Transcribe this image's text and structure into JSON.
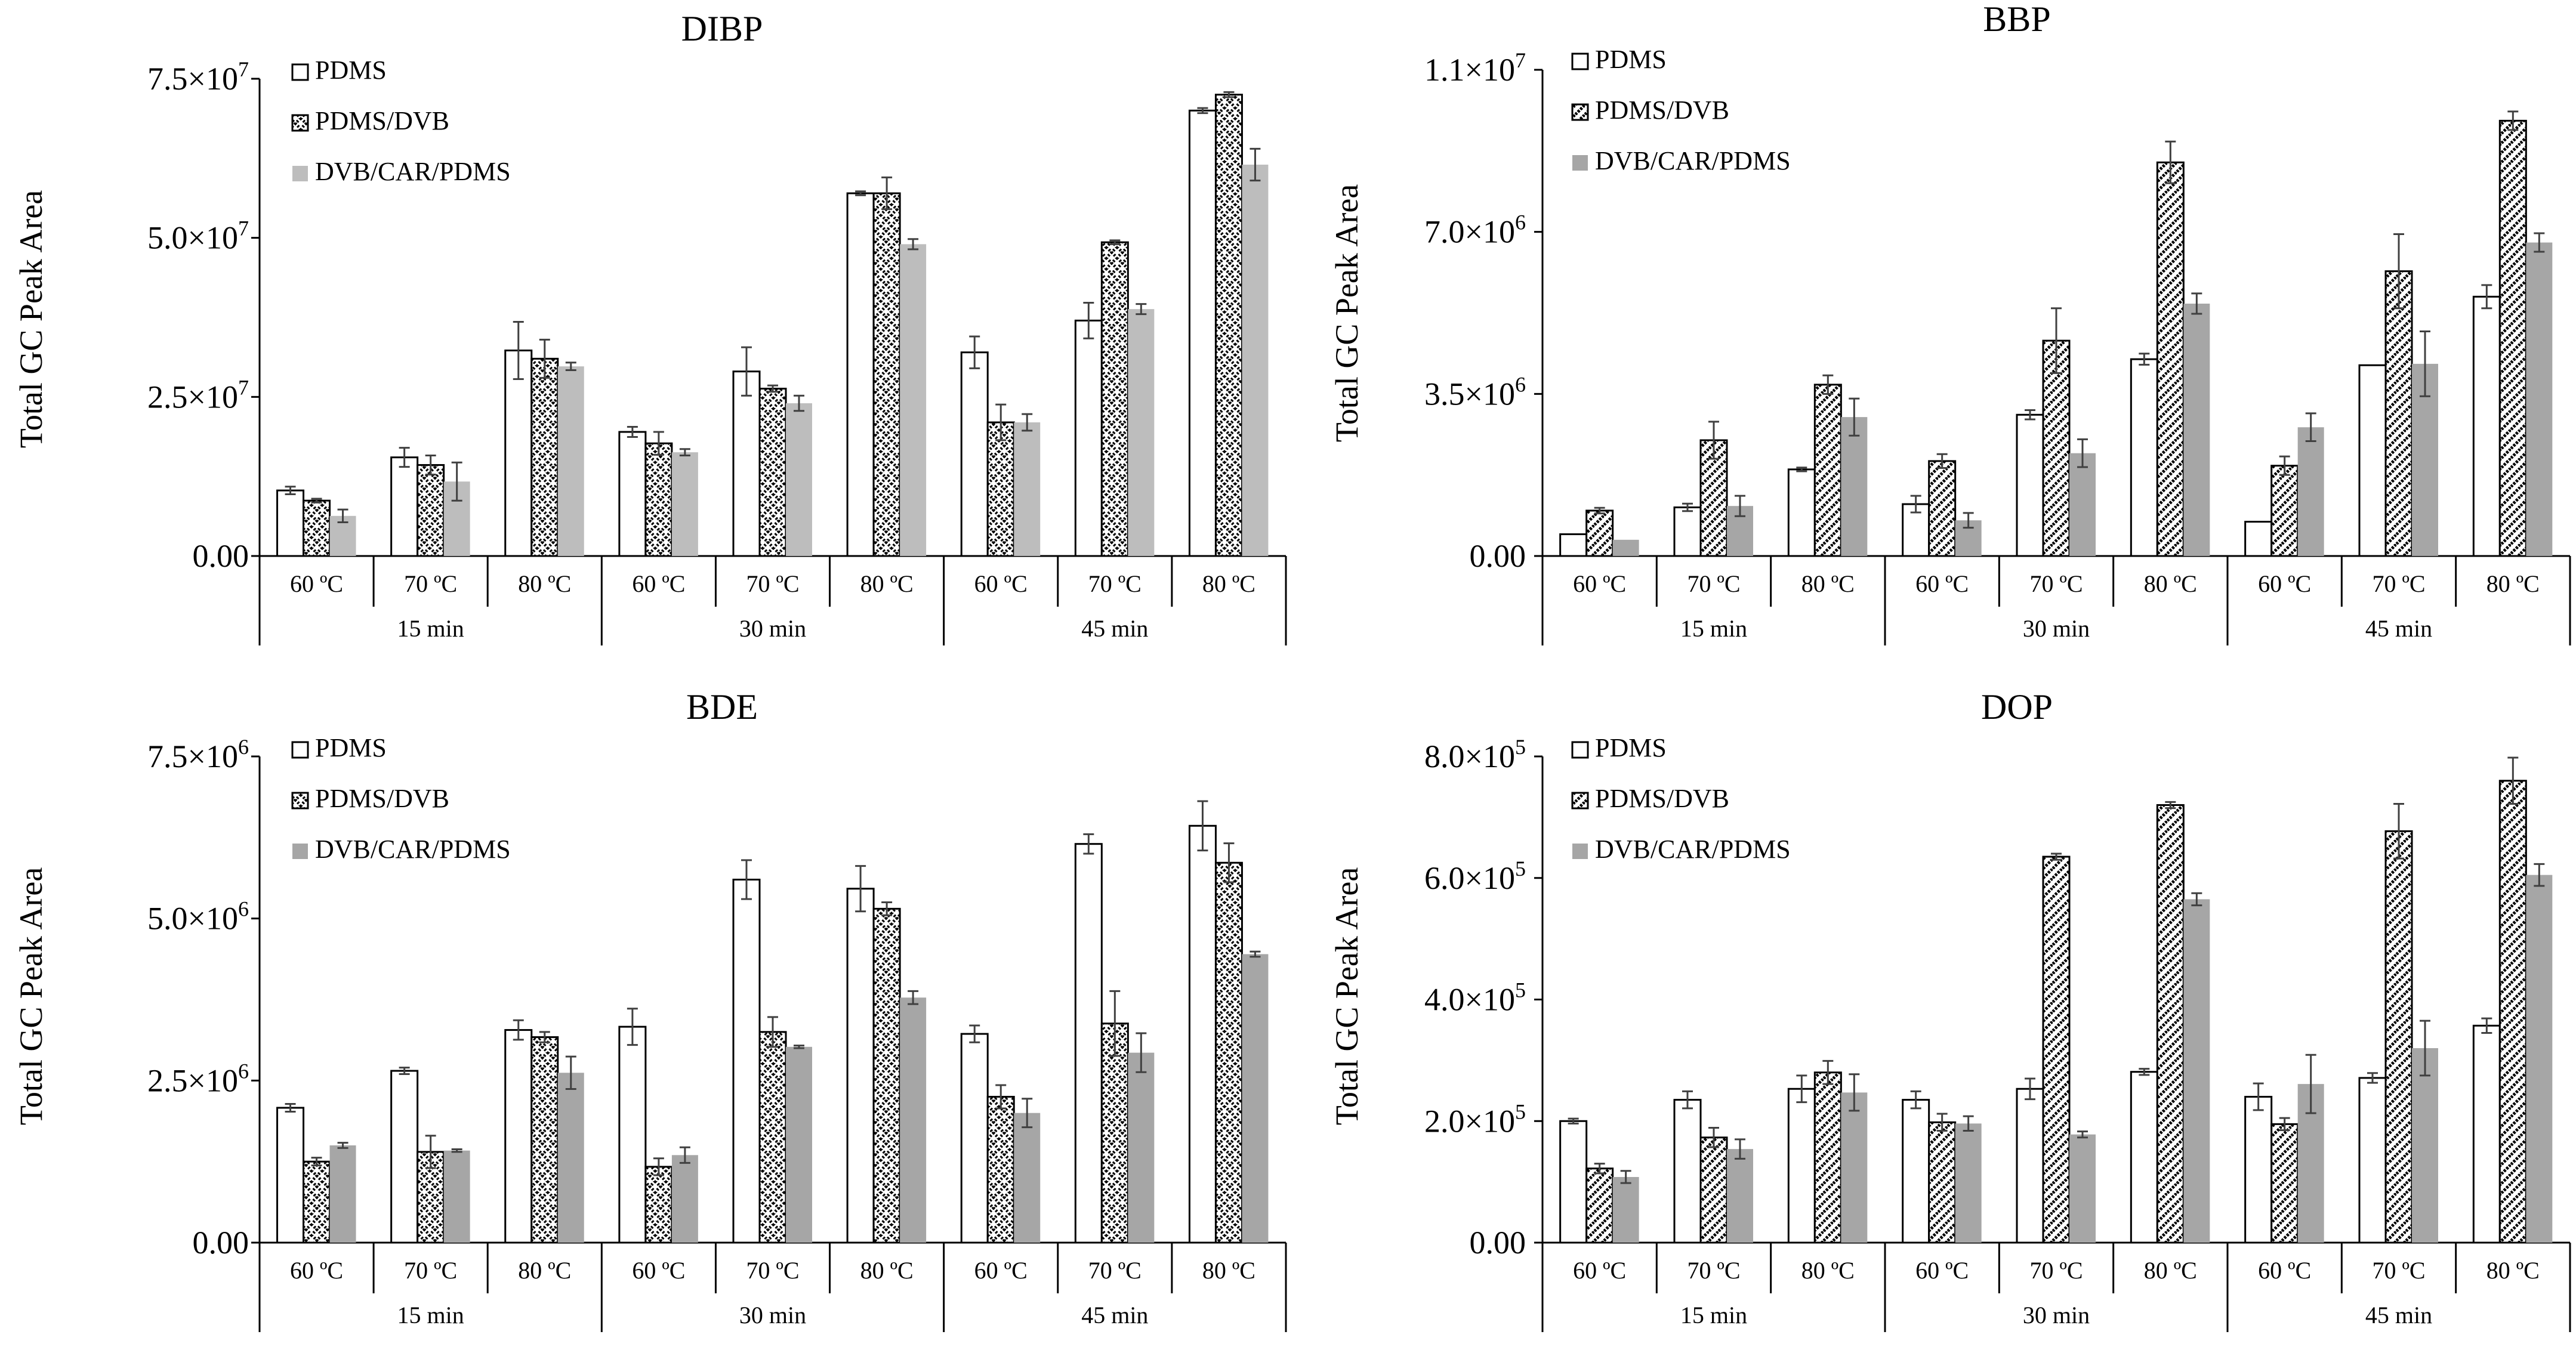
{
  "series_styles": {
    "PDMS": "white",
    "PDMS/DVB": "pattern",
    "DVB/CAR/PDMS": "gray"
  },
  "colors": {
    "gray_light": "#bdbdbd",
    "gray_dark": "#a6a6a6",
    "axis": "#000000"
  },
  "chart_data": [
    {
      "type": "bar",
      "title": "DIBP",
      "ylabel": "Total GC Peak Area",
      "ylim": [
        0,
        75000000
      ],
      "ytick_values": [
        0,
        25000000,
        50000000,
        75000000
      ],
      "ytick_labels": [
        "0.00",
        "2.5×10",
        "5.0×10",
        "7.5×10"
      ],
      "ytick_exponents": [
        "",
        "7",
        "7",
        "7"
      ],
      "categories": [
        "60 ºC",
        "70 ºC",
        "80 ºC",
        "60 ºC",
        "70 ºC",
        "80 ºC",
        "60 ºC",
        "70 ºC",
        "80 ºC"
      ],
      "groups": [
        "15 min",
        "30 min",
        "45 min"
      ],
      "pattern": "cross",
      "gray": "#bdbdbd",
      "series": [
        {
          "name": "PDMS",
          "values": [
            10300000,
            15500000,
            32300000,
            19500000,
            29000000,
            57000000,
            32000000,
            37000000,
            70000000
          ],
          "errors": [
            600000,
            1500000,
            4500000,
            800000,
            3800000,
            300000,
            2500000,
            2800000,
            400000
          ]
        },
        {
          "name": "PDMS/DVB",
          "values": [
            8700000,
            14300000,
            31000000,
            17700000,
            26300000,
            57000000,
            21000000,
            49300000,
            72500000
          ],
          "errors": [
            300000,
            1500000,
            3000000,
            1800000,
            500000,
            2500000,
            2800000,
            300000,
            400000
          ]
        },
        {
          "name": "DVB/CAR/PDMS",
          "values": [
            6300000,
            11700000,
            29800000,
            16300000,
            24000000,
            49000000,
            21000000,
            38800000,
            61500000
          ],
          "errors": [
            1000000,
            3000000,
            600000,
            500000,
            1200000,
            800000,
            1300000,
            800000,
            2500000
          ]
        }
      ]
    },
    {
      "type": "bar",
      "title": "BBP",
      "ylabel": "Total GC Peak Area",
      "ylim": [
        0,
        10500000
      ],
      "ytick_values": [
        0,
        3500000,
        7000000,
        10500000
      ],
      "ytick_labels": [
        "0.00",
        "3.5×10",
        "7.0×10",
        "1.1×10"
      ],
      "ytick_exponents": [
        "",
        "6",
        "6",
        "7"
      ],
      "categories": [
        "60 ºC",
        "70 ºC",
        "80 ºC",
        "60 ºC",
        "70 ºC",
        "80 ºC",
        "60 ºC",
        "70 ºC",
        "80 ºC"
      ],
      "groups": [
        "15 min",
        "30 min",
        "45 min"
      ],
      "pattern": "diag",
      "gray": "#a6a6a6",
      "series": [
        {
          "name": "PDMS",
          "values": [
            470000,
            1050000,
            1870000,
            1120000,
            3050000,
            4250000,
            740000,
            4120000,
            5600000
          ],
          "errors": [
            0,
            80000,
            40000,
            180000,
            100000,
            120000,
            0,
            0,
            250000
          ]
        },
        {
          "name": "PDMS/DVB",
          "values": [
            980000,
            2500000,
            3700000,
            2050000,
            4650000,
            8500000,
            1950000,
            6150000,
            9400000
          ],
          "errors": [
            60000,
            400000,
            200000,
            150000,
            700000,
            450000,
            200000,
            800000,
            200000
          ]
        },
        {
          "name": "DVB/CAR/PDMS",
          "values": [
            350000,
            1080000,
            3000000,
            770000,
            2220000,
            5450000,
            2780000,
            4150000,
            6770000
          ],
          "errors": [
            0,
            220000,
            400000,
            160000,
            300000,
            220000,
            300000,
            700000,
            200000
          ]
        }
      ]
    },
    {
      "type": "bar",
      "title": "BDE",
      "ylabel": "Total GC Peak Area",
      "ylim": [
        0,
        7500000
      ],
      "ytick_values": [
        0,
        2500000,
        5000000,
        7500000
      ],
      "ytick_labels": [
        "0.00",
        "2.5×10",
        "5.0×10",
        "7.5×10"
      ],
      "ytick_exponents": [
        "",
        "6",
        "6",
        "6"
      ],
      "categories": [
        "60 ºC",
        "70 ºC",
        "80 ºC",
        "60 ºC",
        "70 ºC",
        "80 ºC",
        "60 ºC",
        "70 ºC",
        "80 ºC"
      ],
      "groups": [
        "15 min",
        "30 min",
        "45 min"
      ],
      "pattern": "cross",
      "gray": "#a6a6a6",
      "series": [
        {
          "name": "PDMS",
          "values": [
            2080000,
            2650000,
            3280000,
            3330000,
            5600000,
            5460000,
            3220000,
            6150000,
            6430000
          ],
          "errors": [
            60000,
            50000,
            150000,
            280000,
            300000,
            350000,
            130000,
            150000,
            380000
          ]
        },
        {
          "name": "PDMS/DVB",
          "values": [
            1250000,
            1400000,
            3170000,
            1170000,
            3250000,
            5150000,
            2250000,
            3380000,
            5860000
          ],
          "errors": [
            60000,
            250000,
            80000,
            130000,
            230000,
            100000,
            180000,
            500000,
            300000
          ]
        },
        {
          "name": "DVB/CAR/PDMS",
          "values": [
            1500000,
            1420000,
            2620000,
            1350000,
            3020000,
            3780000,
            2000000,
            2930000,
            4450000
          ],
          "errors": [
            40000,
            20000,
            250000,
            120000,
            20000,
            100000,
            220000,
            300000,
            40000
          ]
        }
      ]
    },
    {
      "type": "bar",
      "title": "DOP",
      "ylabel": "Total GC Peak Area",
      "ylim": [
        0,
        800000
      ],
      "ytick_values": [
        0,
        200000,
        400000,
        600000,
        800000
      ],
      "ytick_labels": [
        "0.00",
        "2.0×10",
        "4.0×10",
        "6.0×10",
        "8.0×10"
      ],
      "ytick_exponents": [
        "",
        "5",
        "5",
        "5",
        "5"
      ],
      "categories": [
        "60 ºC",
        "70 ºC",
        "80 ºC",
        "60 ºC",
        "70 ºC",
        "80 ºC",
        "60 ºC",
        "70 ºC",
        "80 ºC"
      ],
      "groups": [
        "15 min",
        "30 min",
        "45 min"
      ],
      "pattern": "diag",
      "gray": "#a6a6a6",
      "series": [
        {
          "name": "PDMS",
          "values": [
            200000,
            235000,
            253000,
            235000,
            253000,
            281000,
            240000,
            271000,
            357000
          ],
          "errors": [
            4000,
            14000,
            22000,
            14000,
            17000,
            5000,
            22000,
            8000,
            12000
          ]
        },
        {
          "name": "PDMS/DVB",
          "values": [
            122000,
            173000,
            280000,
            198000,
            635000,
            720000,
            195000,
            677000,
            760000
          ],
          "errors": [
            8000,
            16000,
            19000,
            14000,
            5000,
            5000,
            10000,
            45000,
            38000
          ]
        },
        {
          "name": "DVB/CAR/PDMS",
          "values": [
            108000,
            154000,
            247000,
            196000,
            178000,
            565000,
            261000,
            320000,
            605000
          ],
          "errors": [
            10000,
            16000,
            30000,
            12000,
            5000,
            10000,
            48000,
            45000,
            18000
          ]
        }
      ]
    }
  ]
}
